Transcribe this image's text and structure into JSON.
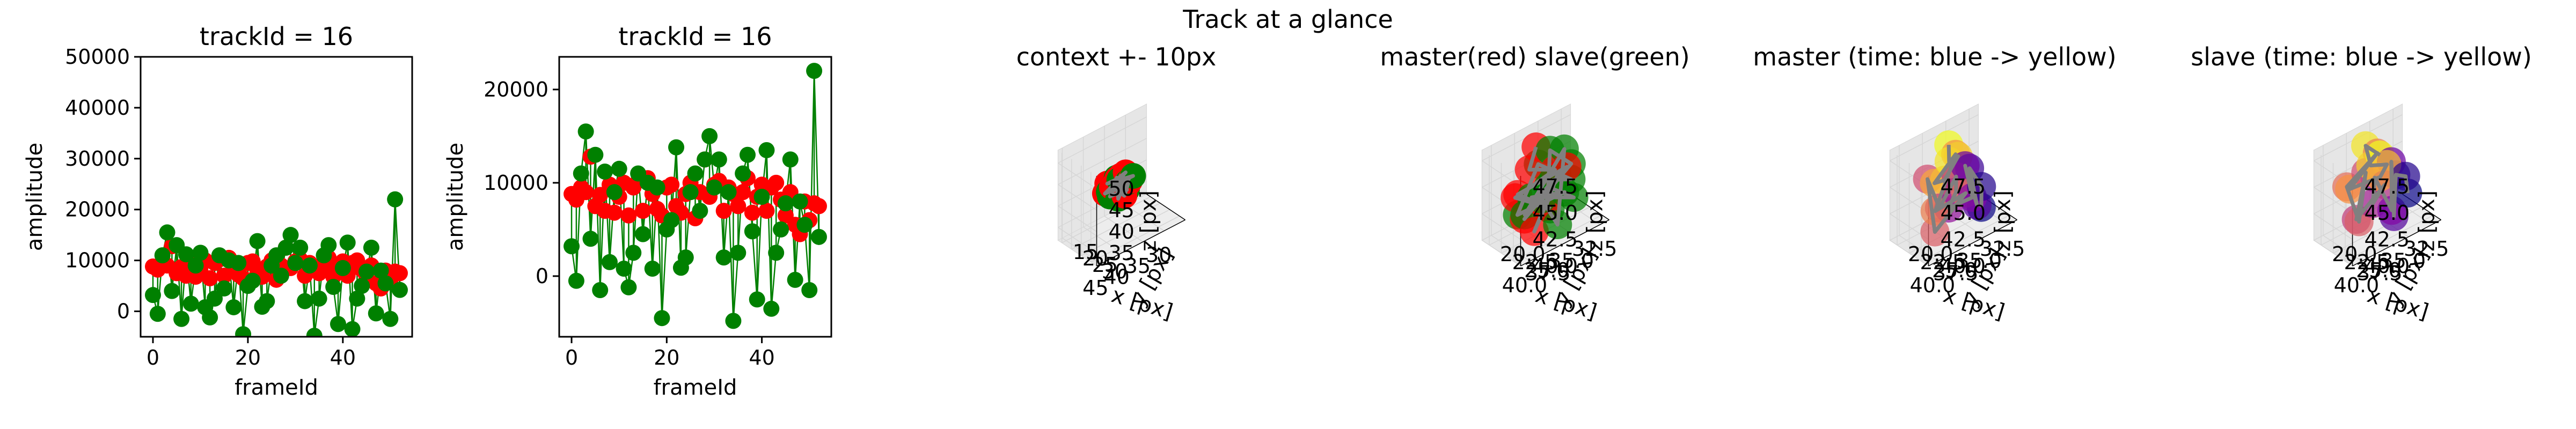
{
  "figure": {
    "suptitle": "Track at a glance",
    "colors": {
      "master": "#ff0000",
      "slave": "#008000",
      "slave_line": "#008000",
      "path": "#808080",
      "pane": "#ededed",
      "pane_side": "#e6e6e6"
    }
  },
  "chart_data": [
    {
      "type": "scatter",
      "title": "trackId = 16",
      "xlabel": "frameId",
      "ylabel": "amplitude",
      "xlim": [
        -2.6,
        54.6
      ],
      "ylim": [
        -5000,
        50000
      ],
      "xticks": [
        0,
        20,
        40
      ],
      "yticks": [
        0,
        10000,
        20000,
        30000,
        40000,
        50000
      ],
      "series": [
        {
          "role": "master",
          "x": [
            0,
            1,
            2,
            3,
            4,
            5,
            6,
            7,
            8,
            9,
            10,
            11,
            12,
            13,
            14,
            15,
            16,
            17,
            18,
            19,
            20,
            21,
            22,
            23,
            24,
            25,
            26,
            27,
            28,
            29,
            30,
            31,
            32,
            33,
            34,
            35,
            36,
            37,
            38,
            39,
            40,
            41,
            42,
            43,
            44,
            45,
            46,
            47,
            48,
            49,
            50,
            51,
            52
          ],
          "y": [
            8800,
            8200,
            9500,
            9000,
            12800,
            7500,
            8700,
            7000,
            9800,
            6800,
            8500,
            10000,
            6500,
            9500,
            10200,
            7000,
            10500,
            8800,
            7200,
            6500,
            9500,
            9800,
            7500,
            6800,
            8800,
            10000,
            6200,
            9000,
            12500,
            8500,
            9800,
            10200,
            7000,
            9500,
            8800,
            7500,
            9000,
            10500,
            6800,
            8500,
            9800,
            7000,
            9500,
            10000,
            8200,
            6500,
            9000,
            5500,
            4500,
            8000,
            6000,
            7800,
            7500
          ]
        },
        {
          "role": "slave",
          "x": [
            0,
            1,
            2,
            3,
            4,
            5,
            6,
            7,
            8,
            9,
            10,
            11,
            12,
            13,
            14,
            15,
            16,
            17,
            18,
            19,
            20,
            21,
            22,
            23,
            24,
            25,
            26,
            27,
            28,
            29,
            30,
            31,
            32,
            33,
            34,
            35,
            36,
            37,
            38,
            39,
            40,
            41,
            42,
            43,
            44,
            45,
            46,
            47,
            48,
            49,
            50,
            51,
            52
          ],
          "y": [
            3200,
            -500,
            11000,
            15500,
            4000,
            13000,
            -1500,
            11200,
            1500,
            9000,
            11500,
            800,
            -1200,
            2500,
            11000,
            4500,
            10000,
            800,
            9500,
            -4500,
            5000,
            6000,
            13800,
            900,
            2000,
            9000,
            11000,
            7000,
            12500,
            15000,
            9500,
            12500,
            2000,
            9000,
            -4800,
            2500,
            11000,
            13000,
            4800,
            -2500,
            8500,
            13500,
            -3500,
            2500,
            5000,
            7800,
            12500,
            -400,
            8000,
            5500,
            -1500,
            22000,
            4200
          ]
        }
      ]
    },
    {
      "type": "scatter",
      "title": "trackId = 16",
      "xlabel": "frameId",
      "ylabel": "amplitude",
      "xlim": [
        -2.6,
        54.6
      ],
      "ylim": [
        -6500,
        23500
      ],
      "xticks": [
        0,
        20,
        40
      ],
      "yticks": [
        0,
        10000,
        20000
      ],
      "series": [
        {
          "role": "master",
          "x": [
            0,
            1,
            2,
            3,
            4,
            5,
            6,
            7,
            8,
            9,
            10,
            11,
            12,
            13,
            14,
            15,
            16,
            17,
            18,
            19,
            20,
            21,
            22,
            23,
            24,
            25,
            26,
            27,
            28,
            29,
            30,
            31,
            32,
            33,
            34,
            35,
            36,
            37,
            38,
            39,
            40,
            41,
            42,
            43,
            44,
            45,
            46,
            47,
            48,
            49,
            50,
            51,
            52
          ],
          "y": [
            8800,
            8200,
            9500,
            9000,
            12800,
            7500,
            8700,
            7000,
            9800,
            6800,
            8500,
            10000,
            6500,
            9500,
            10200,
            7000,
            10500,
            8800,
            7200,
            6500,
            9500,
            9800,
            7500,
            6800,
            8800,
            10000,
            6200,
            9000,
            12500,
            8500,
            9800,
            10200,
            7000,
            9500,
            8800,
            7500,
            9000,
            10500,
            6800,
            8500,
            9800,
            7000,
            9500,
            10000,
            8200,
            6500,
            9000,
            5500,
            4500,
            8000,
            6000,
            7800,
            7500
          ]
        },
        {
          "role": "slave",
          "x": [
            0,
            1,
            2,
            3,
            4,
            5,
            6,
            7,
            8,
            9,
            10,
            11,
            12,
            13,
            14,
            15,
            16,
            17,
            18,
            19,
            20,
            21,
            22,
            23,
            24,
            25,
            26,
            27,
            28,
            29,
            30,
            31,
            32,
            33,
            34,
            35,
            36,
            37,
            38,
            39,
            40,
            41,
            42,
            43,
            44,
            45,
            46,
            47,
            48,
            49,
            50,
            51,
            52
          ],
          "y": [
            3200,
            -500,
            11000,
            15500,
            4000,
            13000,
            -1500,
            11200,
            1500,
            9000,
            11500,
            800,
            -1200,
            2500,
            11000,
            4500,
            10000,
            800,
            9500,
            -4500,
            5000,
            6000,
            13800,
            900,
            2000,
            9000,
            11000,
            7000,
            12500,
            15000,
            9500,
            12500,
            2000,
            9000,
            -4800,
            2500,
            11000,
            13000,
            4800,
            -2500,
            8500,
            13500,
            -3500,
            2500,
            5000,
            7800,
            12500,
            -400,
            8000,
            5500,
            -1500,
            22000,
            4200
          ]
        }
      ]
    },
    {
      "type": "scatter",
      "title": "context +- 10px",
      "xlabel": "x [px]",
      "ylabel": "y [px]",
      "zlabel": "z [px]",
      "xlim": [
        25,
        46
      ],
      "ylim": [
        13,
        33
      ],
      "zlim": [
        32,
        53
      ],
      "xticks": [
        "30",
        "35",
        "40",
        "45"
      ],
      "yticks": [
        "15",
        "20",
        "25",
        "30"
      ],
      "zticks": [
        "35",
        "40",
        "45",
        "50"
      ],
      "colormode": "master-slave",
      "points": [
        {
          "x": 34.0,
          "y": 24.0,
          "z": 43.0,
          "c": "m"
        },
        {
          "x": 35.5,
          "y": 22.5,
          "z": 44.5,
          "c": "m"
        },
        {
          "x": 37.0,
          "y": 23.0,
          "z": 42.5,
          "c": "m"
        },
        {
          "x": 38.5,
          "y": 24.5,
          "z": 44.0,
          "c": "m"
        },
        {
          "x": 36.0,
          "y": 25.5,
          "z": 41.0,
          "c": "m"
        },
        {
          "x": 33.5,
          "y": 22.0,
          "z": 41.5,
          "c": "m"
        },
        {
          "x": 39.0,
          "y": 22.0,
          "z": 42.0,
          "c": "m"
        },
        {
          "x": 35.0,
          "y": 24.0,
          "z": 45.5,
          "c": "m"
        },
        {
          "x": 37.5,
          "y": 25.0,
          "z": 45.5,
          "c": "m"
        },
        {
          "x": 38.0,
          "y": 21.0,
          "z": 43.5,
          "c": "m"
        },
        {
          "x": 33.0,
          "y": 23.5,
          "z": 43.5,
          "c": "s"
        },
        {
          "x": 34.5,
          "y": 21.5,
          "z": 42.5,
          "c": "s"
        },
        {
          "x": 36.0,
          "y": 23.0,
          "z": 41.0,
          "c": "s"
        },
        {
          "x": 37.5,
          "y": 22.5,
          "z": 43.0,
          "c": "s"
        },
        {
          "x": 35.0,
          "y": 25.0,
          "z": 43.5,
          "c": "s"
        },
        {
          "x": 36.5,
          "y": 24.0,
          "z": 44.5,
          "c": "s"
        },
        {
          "x": 38.5,
          "y": 23.5,
          "z": 41.5,
          "c": "s"
        },
        {
          "x": 34.0,
          "y": 22.5,
          "z": 40.5,
          "c": "s"
        },
        {
          "x": 36.0,
          "y": 21.5,
          "z": 44.0,
          "c": "s"
        },
        {
          "x": 37.0,
          "y": 24.5,
          "z": 40.5,
          "c": "s"
        },
        {
          "x": 35.5,
          "y": 23.5,
          "z": 42.0,
          "c": "s"
        },
        {
          "x": 39.0,
          "y": 24.0,
          "z": 43.0,
          "c": "s"
        }
      ]
    },
    {
      "type": "scatter",
      "title": "master(red) slave(green)",
      "xlabel": "x [px]",
      "ylabel": "y [px]",
      "zlabel": "z [px]",
      "xlim": [
        31.5,
        41
      ],
      "ylim": [
        18.5,
        26.5
      ],
      "zlim": [
        40,
        48.5
      ],
      "xticks": [
        "32.5",
        "35.0",
        "37.5",
        "40.0"
      ],
      "yticks": [
        "20.0",
        "22.5",
        "25.0"
      ],
      "zticks": [
        "40.0",
        "42.5",
        "45.0",
        "47.5"
      ],
      "colormode": "master-slave",
      "points": [
        {
          "x": 36.5,
          "y": 21.0,
          "z": 47.5,
          "c": "m"
        },
        {
          "x": 38.0,
          "y": 22.5,
          "z": 46.5,
          "c": "m"
        },
        {
          "x": 35.5,
          "y": 23.0,
          "z": 45.5,
          "c": "m"
        },
        {
          "x": 39.0,
          "y": 21.5,
          "z": 44.0,
          "c": "m"
        },
        {
          "x": 37.0,
          "y": 24.0,
          "z": 43.0,
          "c": "m"
        },
        {
          "x": 34.5,
          "y": 21.5,
          "z": 44.0,
          "c": "m"
        },
        {
          "x": 38.5,
          "y": 24.5,
          "z": 41.5,
          "c": "m"
        },
        {
          "x": 36.0,
          "y": 22.0,
          "z": 42.0,
          "c": "m"
        },
        {
          "x": 39.5,
          "y": 23.0,
          "z": 45.0,
          "c": "m"
        },
        {
          "x": 35.0,
          "y": 24.5,
          "z": 46.0,
          "c": "m"
        },
        {
          "x": 37.5,
          "y": 20.5,
          "z": 41.0,
          "c": "m"
        },
        {
          "x": 33.5,
          "y": 22.5,
          "z": 45.0,
          "c": "s"
        },
        {
          "x": 35.0,
          "y": 21.0,
          "z": 46.5,
          "c": "s"
        },
        {
          "x": 36.5,
          "y": 23.5,
          "z": 44.5,
          "c": "s"
        },
        {
          "x": 34.0,
          "y": 24.0,
          "z": 42.5,
          "c": "s"
        },
        {
          "x": 37.5,
          "y": 22.0,
          "z": 43.5,
          "c": "s"
        },
        {
          "x": 35.5,
          "y": 25.0,
          "z": 44.0,
          "c": "s"
        },
        {
          "x": 38.5,
          "y": 21.0,
          "z": 42.0,
          "c": "s"
        },
        {
          "x": 36.0,
          "y": 20.5,
          "z": 45.5,
          "c": "s"
        },
        {
          "x": 33.0,
          "y": 21.5,
          "z": 43.0,
          "c": "s"
        },
        {
          "x": 37.0,
          "y": 25.5,
          "z": 46.0,
          "c": "s"
        },
        {
          "x": 39.0,
          "y": 23.5,
          "z": 43.0,
          "c": "s"
        },
        {
          "x": 34.5,
          "y": 23.0,
          "z": 47.0,
          "c": "s"
        },
        {
          "x": 36.0,
          "y": 24.5,
          "z": 41.0,
          "c": "s"
        },
        {
          "x": 38.0,
          "y": 25.0,
          "z": 44.5,
          "c": "s"
        },
        {
          "x": 35.5,
          "y": 22.0,
          "z": 41.5,
          "c": "s"
        }
      ]
    },
    {
      "type": "scatter",
      "title": "master (time: blue -> yellow)",
      "xlabel": "x [px]",
      "ylabel": "y [px]",
      "zlabel": "z [px]",
      "xlim": [
        31.5,
        41
      ],
      "ylim": [
        18.5,
        26.5
      ],
      "zlim": [
        40,
        48.5
      ],
      "xticks": [
        "32.5",
        "35.0",
        "37.5",
        "40.0"
      ],
      "yticks": [
        "20.0",
        "22.5",
        "25.0"
      ],
      "zticks": [
        "40.0",
        "42.5",
        "45.0",
        "47.5"
      ],
      "colormode": "time",
      "points": [
        {
          "x": 33.0,
          "y": 22.0,
          "z": 40.5
        },
        {
          "x": 33.5,
          "y": 23.0,
          "z": 43.0
        },
        {
          "x": 34.0,
          "y": 21.5,
          "z": 44.5
        },
        {
          "x": 34.5,
          "y": 24.0,
          "z": 42.0
        },
        {
          "x": 35.0,
          "y": 22.5,
          "z": 45.5
        },
        {
          "x": 35.5,
          "y": 25.0,
          "z": 43.5
        },
        {
          "x": 36.0,
          "y": 21.0,
          "z": 41.5
        },
        {
          "x": 36.5,
          "y": 23.5,
          "z": 44.0
        },
        {
          "x": 37.0,
          "y": 24.5,
          "z": 46.0
        },
        {
          "x": 37.5,
          "y": 22.0,
          "z": 42.5
        },
        {
          "x": 38.0,
          "y": 20.5,
          "z": 45.0
        },
        {
          "x": 38.5,
          "y": 23.0,
          "z": 41.0
        },
        {
          "x": 36.5,
          "y": 25.5,
          "z": 44.5
        },
        {
          "x": 39.0,
          "y": 24.0,
          "z": 43.5
        },
        {
          "x": 35.5,
          "y": 21.5,
          "z": 46.5
        },
        {
          "x": 37.0,
          "y": 20.0,
          "z": 44.0
        },
        {
          "x": 38.5,
          "y": 25.0,
          "z": 46.5
        },
        {
          "x": 36.0,
          "y": 23.0,
          "z": 47.0
        },
        {
          "x": 37.5,
          "y": 24.0,
          "z": 47.5
        },
        {
          "x": 36.5,
          "y": 22.0,
          "z": 48.0
        }
      ]
    },
    {
      "type": "scatter",
      "title": "slave (time: blue -> yellow)",
      "xlabel": "x [px]",
      "ylabel": "y [px]",
      "zlabel": "z [px]",
      "xlim": [
        31.5,
        41
      ],
      "ylim": [
        18.5,
        26.5
      ],
      "zlim": [
        40,
        48.5
      ],
      "xticks": [
        "32.5",
        "35.0",
        "37.5",
        "40.0"
      ],
      "yticks": [
        "20.0",
        "22.5",
        "25.0"
      ],
      "zticks": [
        "40.0",
        "42.5",
        "45.0",
        "47.5"
      ],
      "colormode": "time",
      "points": [
        {
          "x": 33.0,
          "y": 22.5,
          "z": 42.0
        },
        {
          "x": 34.0,
          "y": 24.0,
          "z": 44.5
        },
        {
          "x": 33.5,
          "y": 21.0,
          "z": 43.5
        },
        {
          "x": 35.0,
          "y": 23.5,
          "z": 41.0
        },
        {
          "x": 34.5,
          "y": 22.0,
          "z": 45.5
        },
        {
          "x": 36.0,
          "y": 25.0,
          "z": 42.5
        },
        {
          "x": 35.5,
          "y": 20.5,
          "z": 44.0
        },
        {
          "x": 37.0,
          "y": 23.0,
          "z": 43.0
        },
        {
          "x": 36.5,
          "y": 24.5,
          "z": 45.0
        },
        {
          "x": 38.0,
          "y": 21.5,
          "z": 41.5
        },
        {
          "x": 37.5,
          "y": 22.5,
          "z": 46.0
        },
        {
          "x": 39.0,
          "y": 24.0,
          "z": 42.5
        },
        {
          "x": 38.5,
          "y": 20.5,
          "z": 44.5
        },
        {
          "x": 36.0,
          "y": 22.0,
          "z": 47.0
        },
        {
          "x": 39.5,
          "y": 23.0,
          "z": 45.5
        },
        {
          "x": 37.5,
          "y": 25.5,
          "z": 46.5
        },
        {
          "x": 35.5,
          "y": 23.0,
          "z": 46.0
        },
        {
          "x": 38.0,
          "y": 24.5,
          "z": 47.5
        },
        {
          "x": 37.0,
          "y": 21.5,
          "z": 48.0
        },
        {
          "x": 36.5,
          "y": 23.5,
          "z": 47.5
        }
      ]
    }
  ]
}
